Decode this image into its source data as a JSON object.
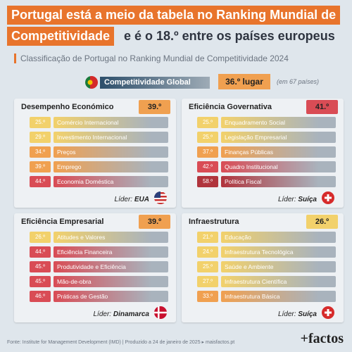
{
  "header": {
    "title_line1": "Portugal está a meio da tabela no Ranking Mundial de",
    "title_highlight": "Competitividade",
    "title_rest": "e é o 18.º entre os países europeus",
    "subtitle": "Classificação de Portugal no Ranking Mundial de Competitividade 2024"
  },
  "global": {
    "label": "Competitividade Global",
    "rank": "36.º lugar",
    "note": "(em 67 países)"
  },
  "panels": [
    {
      "title": "Desempenho Económico",
      "rank": "39.º",
      "rank_color": "#f0a050",
      "leader_label": "Líder:",
      "leader": "EUA",
      "items": [
        {
          "rank": "25.º",
          "label": "Comércio Internacional",
          "color": "#f2d16b"
        },
        {
          "rank": "29.º",
          "label": "Investimento Internacional",
          "color": "#f2d16b"
        },
        {
          "rank": "34.º",
          "label": "Preços",
          "color": "#f0a050"
        },
        {
          "rank": "39.º",
          "label": "Emprego",
          "color": "#f0a050"
        },
        {
          "rank": "44.º",
          "label": "Economia Doméstica",
          "color": "#d94c55"
        }
      ]
    },
    {
      "title": "Eficiência Governativa",
      "rank": "41.º",
      "rank_color": "#d94c55",
      "leader_label": "Líder:",
      "leader": "Suíça",
      "items": [
        {
          "rank": "25.º",
          "label": "Enquadramento Social",
          "color": "#f2d16b"
        },
        {
          "rank": "25.º",
          "label": "Legislação Empresarial",
          "color": "#f2d16b"
        },
        {
          "rank": "37.º",
          "label": "Finanças Públicas",
          "color": "#f0a050"
        },
        {
          "rank": "42.º",
          "label": "Quadro Institucional",
          "color": "#d94c55"
        },
        {
          "rank": "58.º",
          "label": "Política Fiscal",
          "color": "#b0343c"
        }
      ]
    },
    {
      "title": "Eficiência Empresarial",
      "rank": "39.º",
      "rank_color": "#f0a050",
      "leader_label": "Líder:",
      "leader": "Dinamarca",
      "items": [
        {
          "rank": "26.º",
          "label": "Atitudes e Valores",
          "color": "#f2d16b"
        },
        {
          "rank": "44.º",
          "label": "Eficiência Financeira",
          "color": "#d94c55"
        },
        {
          "rank": "45.º",
          "label": "Produtividade e Eficiência",
          "color": "#d94c55"
        },
        {
          "rank": "45.º",
          "label": "Mão-de-obra",
          "color": "#d94c55"
        },
        {
          "rank": "46.º",
          "label": "Práticas de Gestão",
          "color": "#d94c55"
        }
      ]
    },
    {
      "title": "Infraestrutura",
      "rank": "26.º",
      "rank_color": "#f2d16b",
      "leader_label": "Líder:",
      "leader": "Suíça",
      "items": [
        {
          "rank": "21.º",
          "label": "Educação",
          "color": "#f2d16b"
        },
        {
          "rank": "24.º",
          "label": "Infraestrutura Tecnológica",
          "color": "#f2d16b"
        },
        {
          "rank": "25.º",
          "label": "Saúde e Ambiente",
          "color": "#f2d16b"
        },
        {
          "rank": "27.º",
          "label": "Infraestrutura Científica",
          "color": "#f2d16b"
        },
        {
          "rank": "33.º",
          "label": "Infraestrutura Básica",
          "color": "#f0a050"
        }
      ]
    }
  ],
  "footer": {
    "source": "Fonte: Institute for Management Development (IMD) | Produzido a 24 de janeiro de 2025 ▸ maisfactos.pt",
    "brand": "+factos"
  }
}
